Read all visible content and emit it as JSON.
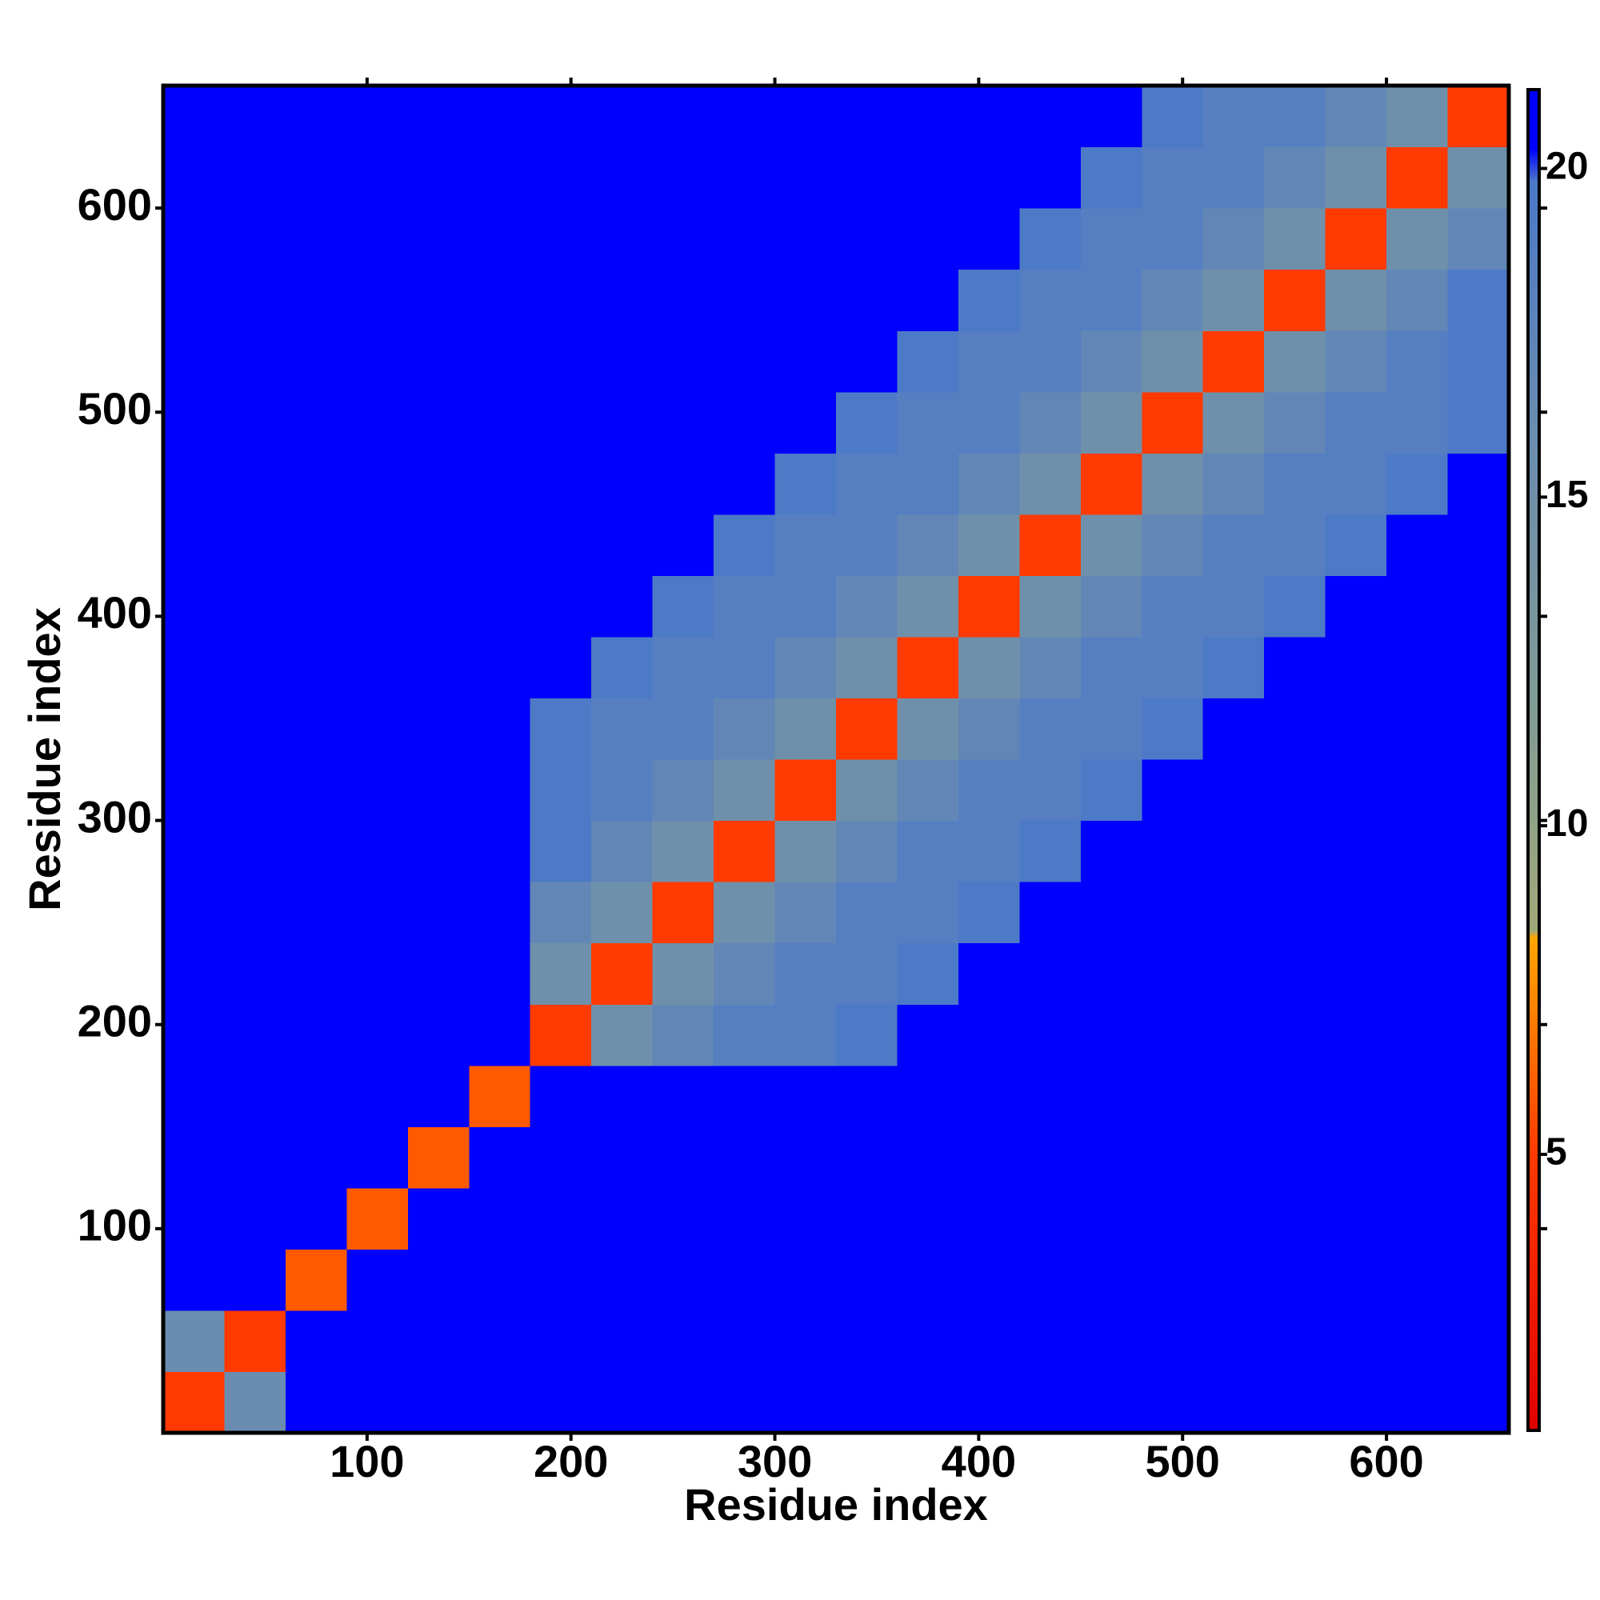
{
  "chart_data": {
    "type": "heatmap",
    "xlabel": "Residue index",
    "ylabel": "Residue index",
    "xlim": [
      0,
      660
    ],
    "ylim": [
      0,
      660
    ],
    "xticks": [
      100,
      200,
      300,
      400,
      500,
      600
    ],
    "yticks": [
      100,
      200,
      300,
      400,
      500,
      600
    ],
    "bin_edges": [
      0,
      30,
      60,
      90,
      120,
      150,
      180,
      210,
      240,
      270,
      300,
      330,
      360,
      390,
      420,
      450,
      480,
      510,
      540,
      570,
      600,
      630,
      660
    ],
    "clim": [
      0.8,
      21.2
    ],
    "cticks": [
      5,
      10,
      15,
      20
    ],
    "colorscale": [
      [
        0.8,
        "#e00000"
      ],
      [
        5,
        "#ff3a00"
      ],
      [
        8.3,
        "#ffa500"
      ],
      [
        8.4,
        "#a0a878"
      ],
      [
        12,
        "#7e9a96"
      ],
      [
        16,
        "#6a8cb0"
      ],
      [
        19.8,
        "#4a78c8"
      ],
      [
        20.3,
        "#0000ff"
      ],
      [
        21.2,
        "#0000ff"
      ]
    ],
    "z": [
      [
        5,
        16,
        21,
        21,
        21,
        21,
        21,
        21,
        21,
        21,
        21,
        21,
        21,
        21,
        21,
        21,
        21,
        21,
        21,
        21,
        21,
        21
      ],
      [
        16,
        5,
        21,
        21,
        21,
        21,
        21,
        21,
        21,
        21,
        21,
        21,
        21,
        21,
        21,
        21,
        21,
        21,
        21,
        21,
        21,
        21
      ],
      [
        21,
        21,
        6,
        21,
        21,
        21,
        21,
        21,
        21,
        21,
        21,
        21,
        21,
        21,
        21,
        21,
        21,
        21,
        21,
        21,
        21,
        21
      ],
      [
        21,
        21,
        21,
        6,
        21,
        21,
        21,
        21,
        21,
        21,
        21,
        21,
        21,
        21,
        21,
        21,
        21,
        21,
        21,
        21,
        21,
        21
      ],
      [
        21,
        21,
        21,
        21,
        6,
        21,
        21,
        21,
        21,
        21,
        21,
        21,
        21,
        21,
        21,
        21,
        21,
        21,
        21,
        21,
        21,
        21
      ],
      [
        21,
        21,
        21,
        21,
        21,
        6,
        21,
        21,
        21,
        21,
        21,
        21,
        21,
        21,
        21,
        21,
        21,
        21,
        21,
        21,
        21,
        21
      ],
      [
        21,
        21,
        21,
        21,
        21,
        21,
        5,
        15,
        17,
        18.5,
        18.5,
        19.5,
        21,
        21,
        21,
        21,
        21,
        21,
        21,
        21,
        21,
        21
      ],
      [
        21,
        21,
        21,
        21,
        21,
        21,
        15,
        5,
        15,
        17,
        18.5,
        18.5,
        19.5,
        21,
        21,
        21,
        21,
        21,
        21,
        21,
        21,
        21
      ],
      [
        21,
        21,
        21,
        21,
        21,
        21,
        17,
        15,
        5,
        15,
        17,
        18.5,
        18.5,
        19.5,
        21,
        21,
        21,
        21,
        21,
        21,
        21,
        21
      ],
      [
        21,
        21,
        21,
        21,
        21,
        21,
        19.5,
        17,
        15,
        5,
        15,
        17,
        18.5,
        18.5,
        19.5,
        21,
        21,
        21,
        21,
        21,
        21,
        21
      ],
      [
        21,
        21,
        21,
        21,
        21,
        21,
        19.5,
        18.5,
        17,
        15,
        5,
        15,
        17,
        18.5,
        18.5,
        19.5,
        21,
        21,
        21,
        21,
        21,
        21
      ],
      [
        21,
        21,
        21,
        21,
        21,
        21,
        19.5,
        18.5,
        18.5,
        17,
        15,
        5,
        15,
        17,
        18.5,
        18.5,
        19.5,
        21,
        21,
        21,
        21,
        21
      ],
      [
        21,
        21,
        21,
        21,
        21,
        21,
        21,
        19.5,
        18.5,
        18.5,
        17,
        15,
        5,
        15,
        17,
        18.5,
        18.5,
        19.5,
        21,
        21,
        21,
        21
      ],
      [
        21,
        21,
        21,
        21,
        21,
        21,
        21,
        21,
        19.5,
        18.5,
        18.5,
        17,
        15,
        5,
        15,
        17,
        18.5,
        18.5,
        19.5,
        21,
        21,
        21
      ],
      [
        21,
        21,
        21,
        21,
        21,
        21,
        21,
        21,
        21,
        19.5,
        18.5,
        18.5,
        17,
        15,
        5,
        15,
        17,
        18.5,
        18.5,
        19.5,
        21,
        21
      ],
      [
        21,
        21,
        21,
        21,
        21,
        21,
        21,
        21,
        21,
        21,
        19.5,
        18.5,
        18.5,
        17,
        15,
        5,
        15,
        17,
        18.5,
        18.5,
        19.5,
        21
      ],
      [
        21,
        21,
        21,
        21,
        21,
        21,
        21,
        21,
        21,
        21,
        21,
        19.5,
        18.5,
        18.5,
        17,
        15,
        5,
        15,
        17,
        18.5,
        18.5,
        19.5
      ],
      [
        21,
        21,
        21,
        21,
        21,
        21,
        21,
        21,
        21,
        21,
        21,
        21,
        19.5,
        18.5,
        18.5,
        17,
        15,
        5,
        15,
        17,
        18.5,
        19.5
      ],
      [
        21,
        21,
        21,
        21,
        21,
        21,
        21,
        21,
        21,
        21,
        21,
        21,
        21,
        19.5,
        18.5,
        18.5,
        17,
        15,
        5,
        15,
        17,
        19.5
      ],
      [
        21,
        21,
        21,
        21,
        21,
        21,
        21,
        21,
        21,
        21,
        21,
        21,
        21,
        21,
        19.5,
        18.5,
        18.5,
        17,
        15,
        5,
        15,
        17
      ],
      [
        21,
        21,
        21,
        21,
        21,
        21,
        21,
        21,
        21,
        21,
        21,
        21,
        21,
        21,
        21,
        19.5,
        18.5,
        18.5,
        17,
        15,
        5,
        15
      ],
      [
        21,
        21,
        21,
        21,
        21,
        21,
        21,
        21,
        21,
        21,
        21,
        21,
        21,
        21,
        21,
        21,
        19.5,
        18.5,
        18.5,
        17,
        15,
        5
      ]
    ]
  }
}
